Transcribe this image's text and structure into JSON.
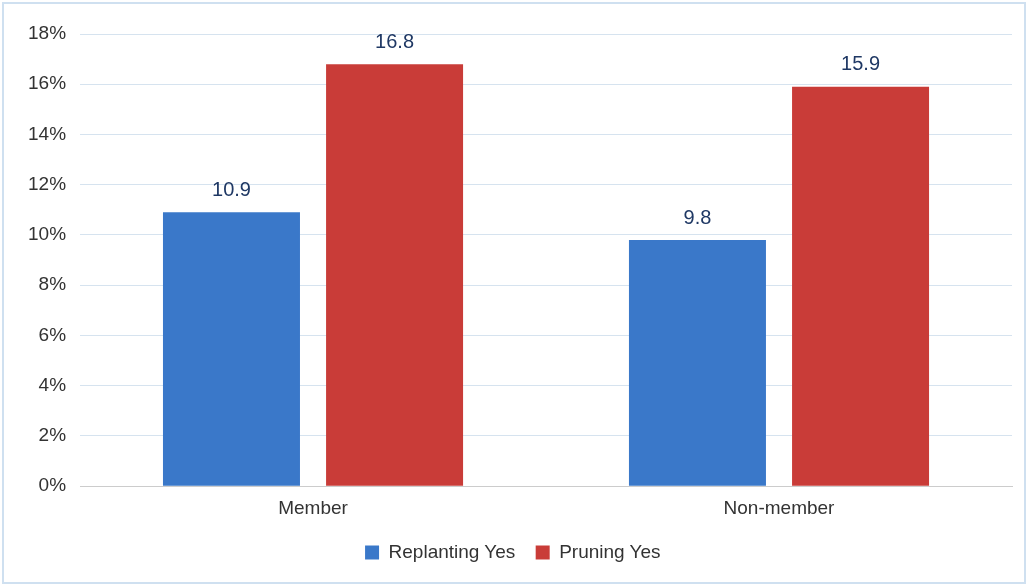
{
  "chart_data": {
    "type": "bar",
    "categories": [
      "Member",
      "Non-member"
    ],
    "series": [
      {
        "name": "Replanting Yes",
        "color": "#3a78c9",
        "values": [
          10.9,
          9.8
        ]
      },
      {
        "name": "Pruning Yes",
        "color": "#c93c38",
        "values": [
          16.8,
          15.9
        ]
      }
    ],
    "ylim": [
      0,
      18
    ],
    "yticks": [
      {
        "value": 0,
        "label": "0%"
      },
      {
        "value": 2,
        "label": "2%"
      },
      {
        "value": 4,
        "label": "4%"
      },
      {
        "value": 6,
        "label": "6%"
      },
      {
        "value": 8,
        "label": "8%"
      },
      {
        "value": 10,
        "label": "10%"
      },
      {
        "value": 12,
        "label": "12%"
      },
      {
        "value": 14,
        "label": "14%"
      },
      {
        "value": 16,
        "label": "16%"
      },
      {
        "value": 18,
        "label": "18%"
      }
    ],
    "grid": "y",
    "legend": "bottom",
    "data_labels": true
  }
}
